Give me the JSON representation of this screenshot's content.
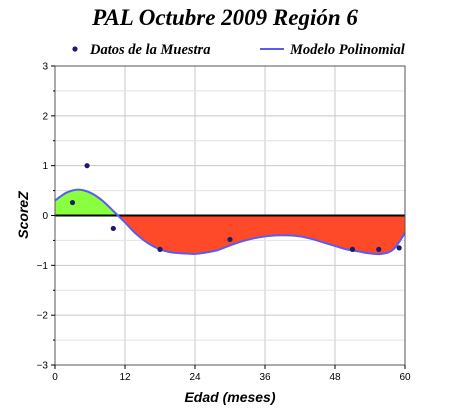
{
  "chart_data": {
    "type": "scatter",
    "title": "PAL Octubre 2009 Región 6",
    "xlabel": "Edad (meses)",
    "ylabel": "ScoreZ",
    "xlim": [
      0,
      60
    ],
    "ylim": [
      -3,
      3
    ],
    "xticks": [
      0,
      12,
      24,
      36,
      48,
      60
    ],
    "yticks": [
      -3,
      -2,
      -1,
      0,
      1,
      2,
      3
    ],
    "grid": true,
    "legend_position": "top",
    "series": [
      {
        "name": "Datos de la Muestra",
        "kind": "points",
        "color": "#1a1a6e",
        "x": [
          3,
          5.5,
          10,
          18,
          30,
          51,
          55.5,
          59
        ],
        "y": [
          0.26,
          1.0,
          -0.26,
          -0.68,
          -0.48,
          -0.68,
          -0.68,
          -0.65
        ]
      },
      {
        "name": "Modelo Polinomial",
        "kind": "line",
        "color": "#5b5bf0",
        "x": [
          0,
          2,
          4,
          6,
          8,
          10,
          12,
          14,
          16,
          18,
          20,
          22,
          24,
          26,
          28,
          30,
          32,
          34,
          36,
          38,
          40,
          42,
          44,
          46,
          48,
          50,
          52,
          54,
          56,
          58,
          60
        ],
        "y": [
          0.3,
          0.46,
          0.52,
          0.46,
          0.31,
          0.09,
          -0.14,
          -0.38,
          -0.56,
          -0.68,
          -0.74,
          -0.76,
          -0.77,
          -0.74,
          -0.69,
          -0.6,
          -0.52,
          -0.46,
          -0.42,
          -0.4,
          -0.4,
          -0.42,
          -0.47,
          -0.54,
          -0.61,
          -0.68,
          -0.72,
          -0.76,
          -0.77,
          -0.68,
          -0.35
        ]
      }
    ],
    "fill": {
      "positive_color": "#8aff40",
      "negative_color": "#ff4a2a"
    },
    "reference_line": {
      "y": 0,
      "color": "#000000"
    }
  }
}
